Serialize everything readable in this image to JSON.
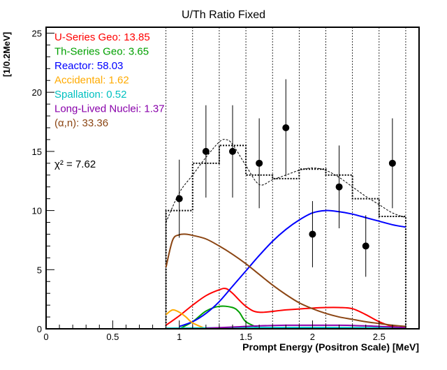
{
  "chart_data": {
    "type": "line",
    "title": "U/Th Ratio Fixed",
    "xlabel": "Prompt Energy (Positron Scale) [MeV]",
    "ylabel": "[1/0.2MeV]",
    "xlim": [
      0,
      2.8
    ],
    "ylim": [
      0,
      25.5
    ],
    "x_ticks": [
      "0",
      "0.5",
      "1",
      "1.5",
      "2",
      "2.5"
    ],
    "x_tick_values": [
      0,
      0.5,
      1,
      1.5,
      2,
      2.5
    ],
    "y_ticks": [
      "0",
      "5",
      "10",
      "15",
      "20",
      "25"
    ],
    "y_tick_values": [
      0,
      5,
      10,
      15,
      20,
      25
    ],
    "legend": {
      "position": "top-left",
      "entries": [
        {
          "label": "U-Series Geo: 13.85",
          "color": "#ff0000"
        },
        {
          "label": "Th-Series Geo: 3.65",
          "color": "#00a000"
        },
        {
          "label": "Reactor: 58.03",
          "color": "#0000ff"
        },
        {
          "label": "Accidental: 1.62",
          "color": "#ffaa00"
        },
        {
          "label": "Spallation: 0.52",
          "color": "#00c0c0"
        },
        {
          "label": "Long-Lived Nuclei: 1.37",
          "color": "#8800aa"
        },
        {
          "label": "(α,n): 33.36",
          "color": "#8b4513"
        }
      ]
    },
    "chi2_label": "χ² = 7.62",
    "bin_edges": [
      0.9,
      1.1,
      1.3,
      1.5,
      1.7,
      1.9,
      2.1,
      2.3,
      2.5,
      2.7
    ],
    "expected_histogram": [
      10.0,
      14.0,
      15.5,
      13.0,
      12.7,
      13.5,
      13.0,
      11.0,
      9.5
    ],
    "data_points": [
      {
        "x": 1.0,
        "y": 11,
        "lo": 7.7,
        "hi": 14.3
      },
      {
        "x": 1.2,
        "y": 15,
        "lo": 11.1,
        "hi": 18.9
      },
      {
        "x": 1.4,
        "y": 15,
        "lo": 11.1,
        "hi": 18.9
      },
      {
        "x": 1.6,
        "y": 14,
        "lo": 10.2,
        "hi": 17.8
      },
      {
        "x": 1.8,
        "y": 17,
        "lo": 12.9,
        "hi": 21.1
      },
      {
        "x": 2.0,
        "y": 8,
        "lo": 5.2,
        "hi": 10.8
      },
      {
        "x": 2.2,
        "y": 12,
        "lo": 8.5,
        "hi": 15.5
      },
      {
        "x": 2.4,
        "y": 7,
        "lo": 4.4,
        "hi": 9.6
      },
      {
        "x": 2.6,
        "y": 14,
        "lo": 10.2,
        "hi": 17.8
      }
    ],
    "grid_lines_x": [
      0.9,
      1.1,
      1.3,
      1.5,
      1.7,
      1.9,
      2.1,
      2.3,
      2.5,
      2.7
    ],
    "series": [
      {
        "name": "U-Series Geo",
        "color": "#ff0000",
        "x": [
          0.9,
          1.0,
          1.1,
          1.2,
          1.3,
          1.35,
          1.4,
          1.5,
          1.6,
          1.8,
          2.0,
          2.1,
          2.2,
          2.3,
          2.4,
          2.5,
          2.6,
          2.7
        ],
        "y": [
          0.3,
          1.1,
          2.0,
          2.8,
          3.3,
          3.4,
          3.0,
          1.9,
          1.4,
          1.6,
          1.75,
          1.8,
          1.8,
          1.7,
          1.2,
          0.6,
          0.2,
          0.05
        ]
      },
      {
        "name": "Th-Series Geo",
        "color": "#00a000",
        "x": [
          1.0,
          1.1,
          1.2,
          1.3,
          1.4,
          1.45,
          1.5,
          1.6
        ],
        "y": [
          0.0,
          0.6,
          1.5,
          1.9,
          1.8,
          1.4,
          0.6,
          0.05
        ]
      },
      {
        "name": "Reactor",
        "color": "#0000ff",
        "x": [
          1.0,
          1.1,
          1.2,
          1.3,
          1.4,
          1.5,
          1.6,
          1.7,
          1.8,
          1.9,
          2.0,
          2.1,
          2.2,
          2.3,
          2.4,
          2.5,
          2.6,
          2.7
        ],
        "y": [
          0.2,
          0.6,
          1.3,
          2.3,
          3.6,
          4.9,
          6.2,
          7.4,
          8.4,
          9.2,
          9.8,
          10.0,
          9.9,
          9.7,
          9.4,
          9.1,
          8.8,
          8.6
        ]
      },
      {
        "name": "Accidental",
        "color": "#ffaa00",
        "x": [
          0.9,
          0.95,
          1.0,
          1.05,
          1.1,
          1.2
        ],
        "y": [
          1.2,
          1.6,
          1.4,
          1.0,
          0.5,
          0.0
        ]
      },
      {
        "name": "Spallation",
        "color": "#00c0c0",
        "x": [
          0.9,
          1.5,
          2.0,
          2.7
        ],
        "y": [
          0.05,
          0.1,
          0.12,
          0.08
        ]
      },
      {
        "name": "Long-Lived Nuclei",
        "color": "#8800aa",
        "x": [
          1.2,
          1.4,
          1.6,
          1.8,
          2.0,
          2.2,
          2.4,
          2.6,
          2.7
        ],
        "y": [
          0.05,
          0.15,
          0.25,
          0.3,
          0.3,
          0.3,
          0.25,
          0.15,
          0.1
        ]
      },
      {
        "name": "(α,n)",
        "color": "#8b4513",
        "x": [
          0.9,
          0.95,
          1.0,
          1.05,
          1.1,
          1.2,
          1.3,
          1.4,
          1.5,
          1.6,
          1.7,
          1.8,
          1.9,
          2.0,
          2.1,
          2.2,
          2.3,
          2.4,
          2.5,
          2.6,
          2.7
        ],
        "y": [
          5.2,
          7.5,
          7.95,
          8.0,
          7.9,
          7.6,
          7.0,
          6.3,
          5.5,
          4.6,
          3.7,
          2.9,
          2.2,
          1.7,
          1.3,
          1.0,
          0.8,
          0.6,
          0.45,
          0.3,
          0.2
        ]
      },
      {
        "name": "Total",
        "color": "#000000",
        "dashed": true,
        "x": [
          0.9,
          1.0,
          1.1,
          1.2,
          1.3,
          1.35,
          1.4,
          1.5,
          1.6,
          1.7,
          1.8,
          1.9,
          2.0,
          2.1,
          2.2,
          2.3,
          2.4,
          2.5,
          2.6,
          2.7
        ],
        "y": [
          9.0,
          11.5,
          13.0,
          14.5,
          15.8,
          16.0,
          15.6,
          13.8,
          12.2,
          12.6,
          13.0,
          13.4,
          13.6,
          13.4,
          12.8,
          12.0,
          11.2,
          10.5,
          9.8,
          9.4
        ]
      }
    ]
  }
}
